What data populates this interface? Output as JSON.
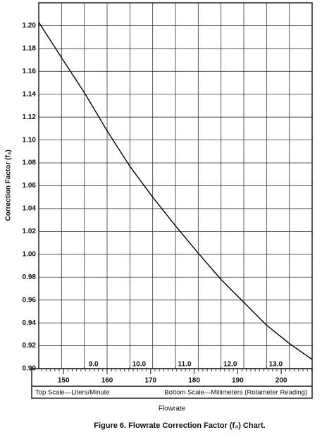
{
  "chart_data": {
    "type": "line",
    "title": "Figure 6. Flowrate Correction Factor (f₃) Chart.",
    "xlabel": "Flowrate",
    "ylabel": "Correction Factor (f₃)",
    "top_scale_note": "Top Scale—Liters/Minute",
    "bottom_scale_note": "Bottom Scale—Millimeters (Rotameter Reading)",
    "x": [
      8,
      8.5,
      9,
      9.5,
      10,
      10.5,
      11,
      11.5,
      12,
      12.5,
      13,
      13.5,
      14
    ],
    "series": [
      {
        "color": "#000000",
        "values": [
          1.203,
          1.172,
          1.1415,
          1.108,
          1.077,
          1.05,
          1.025,
          1.001,
          0.978,
          0.958,
          0.938,
          0.922,
          0.908
        ]
      }
    ],
    "xlim": [
      8,
      14
    ],
    "xticks": [
      {
        "value": 9,
        "label": "9.0"
      },
      {
        "value": 10,
        "label": "10.0"
      },
      {
        "value": 11,
        "label": "11.0"
      },
      {
        "value": 12,
        "label": "12.0"
      },
      {
        "value": 13,
        "label": "13.0"
      }
    ],
    "xgridlines": [
      8.5,
      9,
      9.5,
      10,
      10.5,
      11,
      11.5,
      12,
      12.5,
      13,
      13.5
    ],
    "x2lim": [
      144.3,
      207.1
    ],
    "x2ticks": [
      150,
      160,
      170,
      180,
      190,
      200
    ],
    "x2minorticks": [
      145,
      146,
      147,
      148,
      149,
      151,
      152,
      153,
      154,
      155,
      156,
      157,
      158,
      159,
      161,
      162,
      163,
      164,
      165,
      166,
      167,
      168,
      169,
      171,
      172,
      173,
      174,
      175,
      176,
      177,
      178,
      179,
      181,
      182,
      183,
      184,
      185,
      186,
      187,
      188,
      189,
      191,
      192,
      193,
      194,
      195,
      196,
      197,
      198,
      199,
      201,
      202,
      203,
      204,
      205,
      206,
      207
    ],
    "ylim": [
      0.9,
      1.22
    ],
    "yticks": [
      {
        "value": 0.9,
        "label": "0.90"
      },
      {
        "value": 0.92,
        "label": "0.92"
      },
      {
        "value": 0.94,
        "label": "0.94"
      },
      {
        "value": 0.96,
        "label": "0.96"
      },
      {
        "value": 0.98,
        "label": "0.98"
      },
      {
        "value": 1.0,
        "label": "1.00"
      },
      {
        "value": 1.02,
        "label": "1.02"
      },
      {
        "value": 1.04,
        "label": "1.04"
      },
      {
        "value": 1.06,
        "label": "1.06"
      },
      {
        "value": 1.08,
        "label": "1.08"
      },
      {
        "value": 1.1,
        "label": "1.10"
      },
      {
        "value": 1.12,
        "label": "1.12"
      },
      {
        "value": 1.14,
        "label": "1.14"
      },
      {
        "value": 1.16,
        "label": "1.16"
      },
      {
        "value": 1.18,
        "label": "1.18"
      },
      {
        "value": 1.2,
        "label": "1.20"
      }
    ],
    "grid": true
  }
}
